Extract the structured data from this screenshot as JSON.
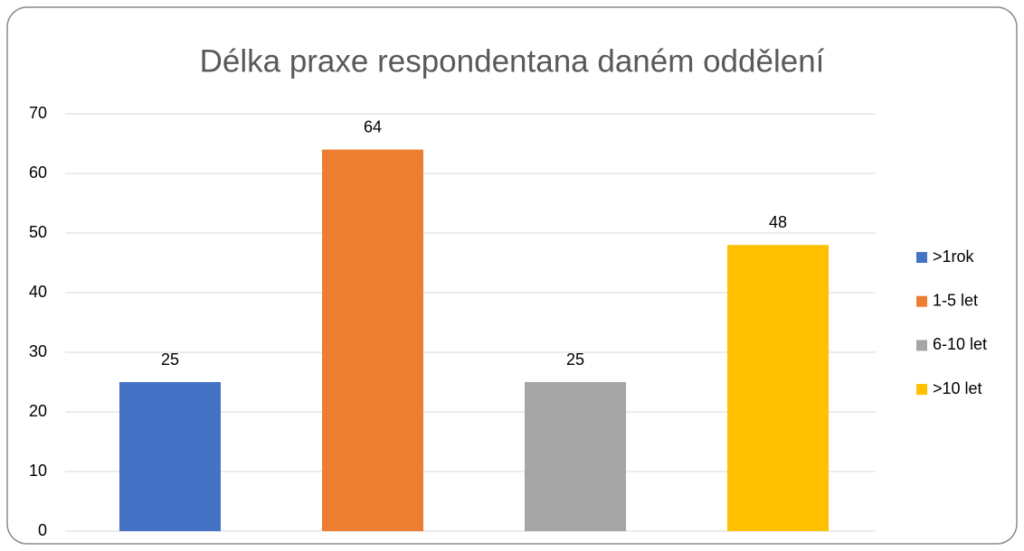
{
  "chart_data": {
    "type": "bar",
    "title": "Délka praxe respondentana daném oddělení",
    "series": [
      {
        "name": ">1rok",
        "color": "#4472c4",
        "values": [
          25
        ]
      },
      {
        "name": "1-5 let",
        "color": "#ed7d31",
        "values": [
          64
        ]
      },
      {
        "name": "6-10 let",
        "color": "#a5a5a5",
        "values": [
          25
        ]
      },
      {
        "name": ">10 let",
        "color": "#ffc000",
        "values": [
          48
        ]
      }
    ],
    "ylim": [
      0,
      70
    ],
    "yticks": [
      0,
      10,
      20,
      30,
      40,
      50,
      60,
      70
    ],
    "grid": true,
    "legend": "right",
    "data_labels": true
  }
}
